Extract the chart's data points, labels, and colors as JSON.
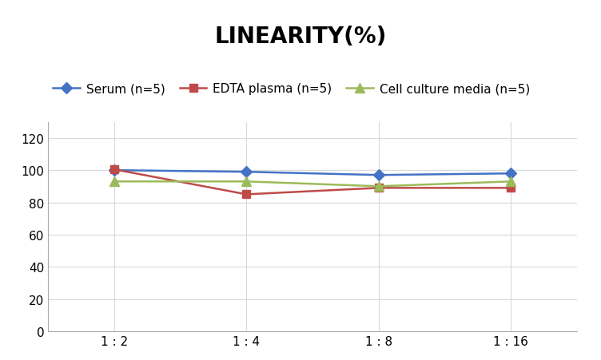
{
  "title": "LINEARITY(%)",
  "x_labels": [
    "1 : 2",
    "1 : 4",
    "1 : 8",
    "1 : 16"
  ],
  "x_positions": [
    0,
    1,
    2,
    3
  ],
  "series": [
    {
      "name": "Serum (n=5)",
      "values": [
        100,
        99,
        97,
        98
      ],
      "color": "#4472C4",
      "marker": "D",
      "linewidth": 1.8,
      "markersize": 7
    },
    {
      "name": "EDTA plasma (n=5)",
      "values": [
        100.5,
        85,
        89,
        89
      ],
      "color": "#BE4B48",
      "marker": "s",
      "linewidth": 1.8,
      "markersize": 7
    },
    {
      "name": "Cell culture media (n=5)",
      "values": [
        93,
        93,
        90,
        93
      ],
      "color": "#9BBB59",
      "marker": "^",
      "linewidth": 1.8,
      "markersize": 8
    }
  ],
  "ylim": [
    0,
    130
  ],
  "yticks": [
    0,
    20,
    40,
    60,
    80,
    100,
    120
  ],
  "grid_color": "#D9D9D9",
  "background_color": "#FFFFFF",
  "title_fontsize": 20,
  "legend_fontsize": 11,
  "tick_fontsize": 11
}
